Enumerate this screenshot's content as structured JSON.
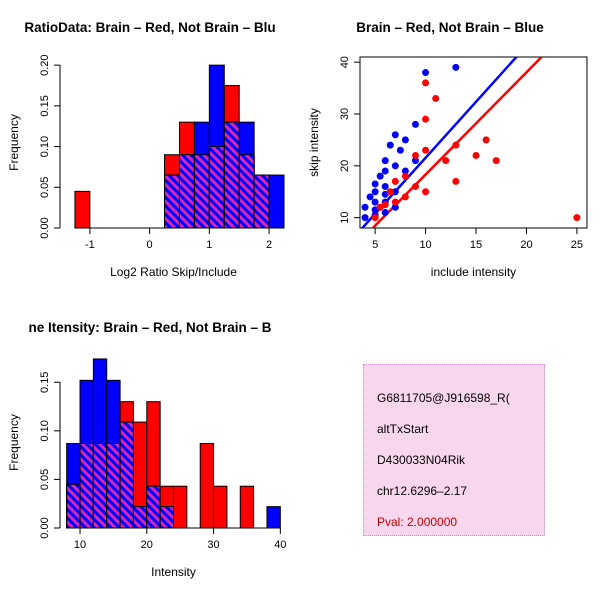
{
  "figure": {
    "background": "#ffffff"
  },
  "colors": {
    "red": "#ff0000",
    "blue": "#0000ff",
    "overlap_stripe": "#d428b4",
    "axis": "#000000",
    "info_bg": "#f8d7ee",
    "info_border": "#c98cbe",
    "pval_red": "#cc0000"
  },
  "chart_data": [
    {
      "id": "ratio_hist",
      "type": "bar",
      "subtype": "overlaid-histogram",
      "title": "RatioData: Brain – Red, Not Brain – Blu",
      "xlabel": "Log2 Ratio Skip/Include",
      "ylabel": "Frequency",
      "bin_width": 0.25,
      "bin_starts": [
        -1.25,
        -1,
        -0.75,
        -0.5,
        -0.25,
        0,
        0.25,
        0.5,
        0.75,
        1,
        1.25,
        1.5,
        1.75,
        2
      ],
      "series": [
        {
          "name": "Brain",
          "color": "red",
          "values": [
            0.045,
            0,
            0,
            0,
            0,
            0,
            0.09,
            0.13,
            0.09,
            0.1,
            0.175,
            0.09,
            0.065,
            0
          ]
        },
        {
          "name": "Not Brain",
          "color": "blue",
          "values": [
            0,
            0,
            0,
            0,
            0,
            0,
            0.065,
            0.09,
            0.13,
            0.2,
            0.13,
            0.13,
            0.065,
            0.065
          ]
        }
      ],
      "xlim": [
        -1.5,
        2.3
      ],
      "ylim": [
        0,
        0.21
      ],
      "xticks": [
        -1,
        0,
        1,
        2
      ],
      "xtick_labels": [
        "-1",
        "0",
        "1",
        "2"
      ],
      "yticks": [
        0,
        0.05,
        0.1,
        0.15,
        0.2
      ],
      "ytick_labels": [
        "0.00",
        "0.05",
        "0.10",
        "0.15",
        "0.20"
      ],
      "grid": false
    },
    {
      "id": "scatter",
      "type": "scatter",
      "title": "Brain – Red, Not Brain – Blue",
      "xlabel": "include intensity",
      "ylabel": "skip intensity",
      "xlim": [
        3.5,
        26
      ],
      "ylim": [
        8,
        41
      ],
      "xticks": [
        5,
        10,
        15,
        20,
        25
      ],
      "xtick_labels": [
        "5",
        "10",
        "15",
        "20",
        "25"
      ],
      "yticks": [
        10,
        20,
        30,
        40
      ],
      "ytick_labels": [
        "10",
        "20",
        "30",
        "40"
      ],
      "grid": false,
      "series": [
        {
          "name": "Brain",
          "color": "red",
          "points": [
            [
              5,
              10
            ],
            [
              5.5,
              12
            ],
            [
              6,
              12.5
            ],
            [
              6.5,
              15
            ],
            [
              7,
              13
            ],
            [
              7,
              17
            ],
            [
              8,
              14
            ],
            [
              8,
              18
            ],
            [
              9,
              16
            ],
            [
              9,
              22
            ],
            [
              10,
              15
            ],
            [
              10,
              23
            ],
            [
              10,
              29
            ],
            [
              10,
              36
            ],
            [
              11,
              33
            ],
            [
              12,
              21
            ],
            [
              13,
              17
            ],
            [
              13,
              24
            ],
            [
              15,
              22
            ],
            [
              16,
              25
            ],
            [
              17,
              21
            ],
            [
              25,
              10
            ]
          ]
        },
        {
          "name": "Not Brain",
          "color": "blue",
          "points": [
            [
              4,
              10
            ],
            [
              4,
              12
            ],
            [
              4.5,
              14
            ],
            [
              5,
              10.5
            ],
            [
              5,
              11.5
            ],
            [
              5,
              13
            ],
            [
              5,
              15
            ],
            [
              5,
              16.5
            ],
            [
              5.5,
              18
            ],
            [
              6,
              11
            ],
            [
              6,
              13
            ],
            [
              6,
              14.5
            ],
            [
              6,
              16
            ],
            [
              6,
              19
            ],
            [
              6,
              21
            ],
            [
              6.5,
              24
            ],
            [
              7,
              12
            ],
            [
              7,
              15
            ],
            [
              7,
              20
            ],
            [
              7,
              26
            ],
            [
              7.5,
              23
            ],
            [
              8,
              19
            ],
            [
              8,
              25
            ],
            [
              9,
              21
            ],
            [
              9,
              28
            ],
            [
              10,
              38
            ],
            [
              13,
              39
            ]
          ]
        }
      ],
      "lines": [
        {
          "name": "blue-fit",
          "color": "blue",
          "x1": 3.5,
          "y1": 7.5,
          "x2": 19,
          "y2": 41
        },
        {
          "name": "red-fit",
          "color": "red",
          "x1": 3.5,
          "y1": 5.5,
          "x2": 21.5,
          "y2": 41
        }
      ]
    },
    {
      "id": "intensity_hist",
      "type": "bar",
      "subtype": "overlaid-histogram",
      "title": "ne Itensity: Brain – Red, Not Brain – B",
      "xlabel": "Intensity",
      "ylabel": "Frequency",
      "bin_width": 2,
      "bin_starts": [
        8,
        10,
        12,
        14,
        16,
        18,
        20,
        22,
        24,
        26,
        28,
        30,
        32,
        34,
        36,
        38
      ],
      "series": [
        {
          "name": "Brain",
          "color": "red",
          "values": [
            0.045,
            0.087,
            0.087,
            0.087,
            0.13,
            0.109,
            0.13,
            0.043,
            0.043,
            0,
            0.087,
            0.043,
            0,
            0.043,
            0,
            0
          ]
        },
        {
          "name": "Not Brain",
          "color": "blue",
          "values": [
            0.087,
            0.152,
            0.174,
            0.152,
            0.109,
            0.022,
            0.043,
            0.022,
            0,
            0,
            0,
            0,
            0,
            0,
            0,
            0.022
          ]
        }
      ],
      "xlim": [
        7,
        41
      ],
      "ylim": [
        0,
        0.176
      ],
      "xticks": [
        10,
        20,
        30,
        40
      ],
      "xtick_labels": [
        "10",
        "20",
        "30",
        "40"
      ],
      "yticks": [
        0,
        0.05,
        0.1,
        0.15
      ],
      "ytick_labels": [
        "0.00",
        "0.05",
        "0.10",
        "0.15"
      ],
      "grid": false
    }
  ],
  "info_panel": {
    "lines": [
      {
        "text": "G6811705@J916598_R(",
        "color": "#000000"
      },
      {
        "text": "altTxStart",
        "color": "#000000"
      },
      {
        "text": "D430033N04Rik",
        "color": "#000000"
      },
      {
        "text": "chr12.6296–2.17",
        "color": "#000000"
      },
      {
        "text": "Pval: 2.000000",
        "color": "#cc0000"
      }
    ]
  }
}
